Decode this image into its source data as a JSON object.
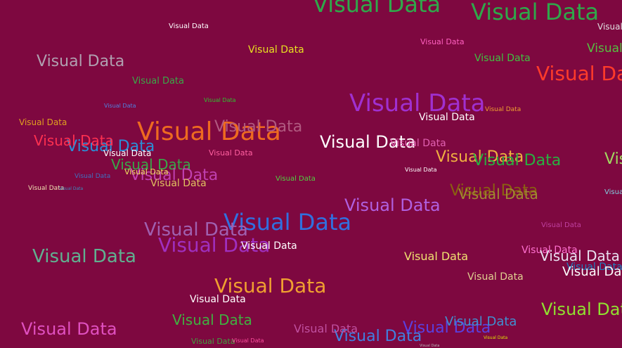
{
  "background": "#7e0840",
  "phrase": "Visual Data",
  "words": [
    {
      "text": "Visual Data",
      "color": "#2fa84a"
    },
    {
      "text": "Visual Data",
      "color": "#2fa84a"
    },
    {
      "text": "Visual Data",
      "color": "#e0e0e0"
    },
    {
      "text": "Visual Data",
      "color": "#55c040"
    },
    {
      "text": "Visual Data",
      "color": "#b0a0b0"
    },
    {
      "text": "Visual Data",
      "color": "#3aa848"
    },
    {
      "text": "Visual Data",
      "color": "#a030d0"
    },
    {
      "text": "Visual Data",
      "color": "#ff3b2a"
    },
    {
      "text": "Visual Data",
      "color": "#e0a020"
    },
    {
      "text": "Visual Data",
      "color": "#ee6a20"
    },
    {
      "text": "Visual Data",
      "color": "#b05a80"
    },
    {
      "text": "Visual Data",
      "color": "#ffffff"
    },
    {
      "text": "Visual Data",
      "color": "#2a8fd8"
    },
    {
      "text": "Visual Data",
      "color": "#ff3050"
    },
    {
      "text": "Visual Data",
      "color": "#38a848"
    },
    {
      "text": "Visual Data",
      "color": "#c040b0"
    },
    {
      "text": "Visual Data",
      "color": "#f0b040"
    },
    {
      "text": "Visual Data",
      "color": "#28b040"
    },
    {
      "text": "Visual Data",
      "color": "#8a6010"
    },
    {
      "text": "Visual Data",
      "color": "#3070e0"
    },
    {
      "text": "Visual Data",
      "color": "#a060b0"
    },
    {
      "text": "Visual Data",
      "color": "#a030c0"
    },
    {
      "text": "Visual Data",
      "color": "#60b090"
    },
    {
      "text": "Visual Data",
      "color": "#f0a030"
    },
    {
      "text": "Visual Data",
      "color": "#b060e0"
    },
    {
      "text": "Visual Data",
      "color": "#90e030"
    },
    {
      "text": "Visual Data",
      "color": "#e050c0"
    },
    {
      "text": "Visual Data",
      "color": "#40b040"
    },
    {
      "text": "Visual Data",
      "color": "#4080e0"
    },
    {
      "text": "Visual Data",
      "color": "#5a40e0"
    },
    {
      "text": "Visual Data",
      "color": "#4090d0"
    },
    {
      "text": "Visual Data",
      "color": "#f0e070"
    },
    {
      "text": "Visual Data",
      "color": "#ffffff"
    },
    {
      "text": "Visual Data",
      "color": "#e0d090"
    },
    {
      "text": "Visual Data",
      "color": "#e0c060"
    },
    {
      "text": "Visual Data",
      "color": "#f0a030"
    },
    {
      "text": "Visual Data",
      "color": "#ffffff"
    },
    {
      "text": "Visual Data",
      "color": "#ff70d0"
    },
    {
      "text": "Visual Data",
      "color": "#e8e0f0"
    },
    {
      "text": "Visual Data",
      "color": "#40c040"
    },
    {
      "text": "Visual Data",
      "color": "#ff60c0"
    },
    {
      "text": "Visual Data",
      "color": "#e060b0"
    },
    {
      "text": "Visual Data",
      "color": "#a0d860"
    },
    {
      "text": "Visual Data",
      "color": "#80d0e0"
    },
    {
      "text": "Visual Data",
      "color": "#f0e060"
    },
    {
      "text": "Visual Data",
      "color": "#ffffff"
    },
    {
      "text": "Visual Data",
      "color": "#e8e020"
    },
    {
      "text": "Visual Data",
      "color": "#50d040"
    },
    {
      "text": "Visual Data",
      "color": "#ff60a0"
    },
    {
      "text": "Visual Data",
      "color": "#ffffff"
    },
    {
      "text": "Visual Data",
      "color": "#4070c0"
    },
    {
      "text": "Visual Data",
      "color": "#f0e0b0"
    },
    {
      "text": "Visual Data",
      "color": "#3890c0"
    },
    {
      "text": "Visual Data",
      "color": "#30c030"
    },
    {
      "text": "Visual Data",
      "color": "#5080e0"
    },
    {
      "text": "Visual Data",
      "color": "#c040a0"
    },
    {
      "text": "Visual Data",
      "color": "#e0e000"
    },
    {
      "text": "Visual Data",
      "color": "#b8b8b8"
    },
    {
      "text": "Visual Data",
      "color": "#40a040"
    },
    {
      "text": "Visual Data",
      "color": "#ffffff"
    },
    {
      "text": "Visual Data",
      "color": "#ff50a0"
    },
    {
      "text": "Visual Data",
      "color": "#ffffff"
    },
    {
      "text": "Visual Data",
      "color": "#2080c0"
    },
    {
      "text": "Visual Data",
      "color": "#ffffff"
    },
    {
      "text": "Visual Data",
      "color": "#c050a0"
    },
    {
      "text": "Visual Data",
      "color": "#a08a30"
    }
  ]
}
